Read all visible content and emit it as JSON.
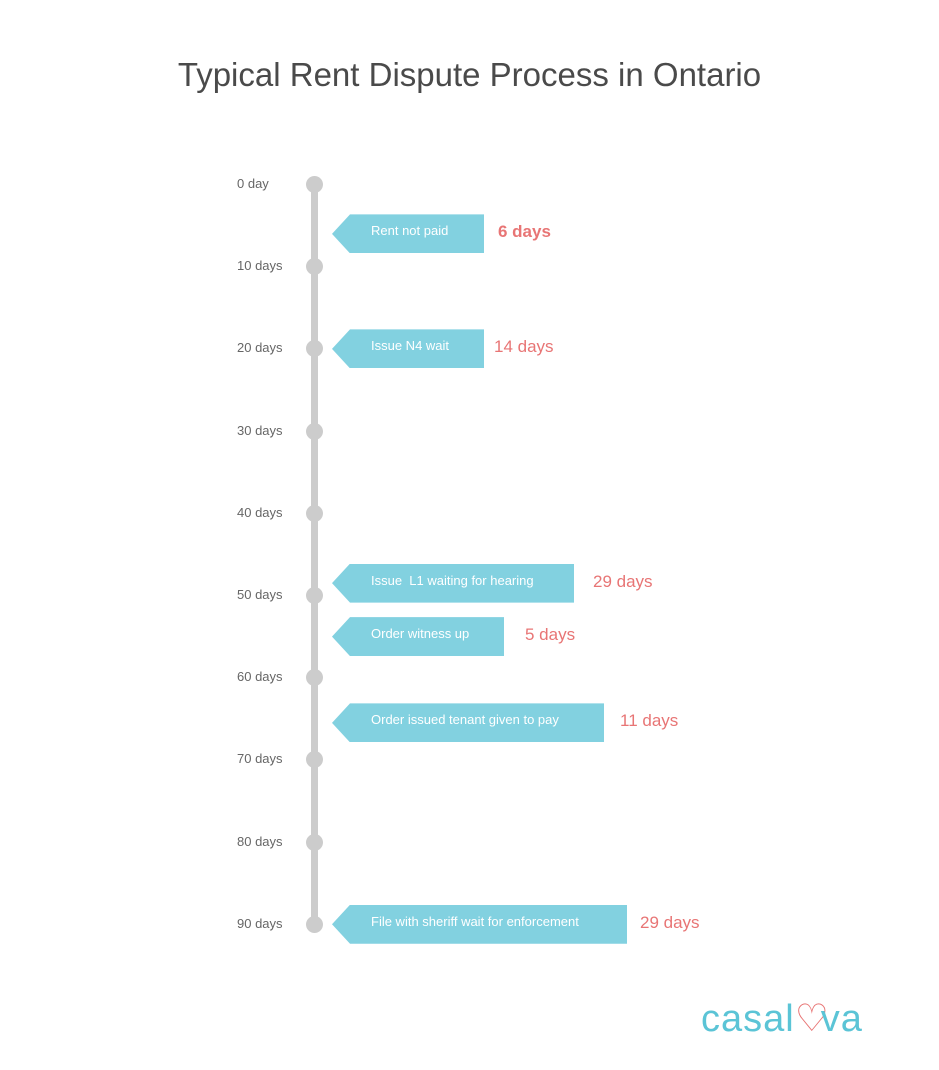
{
  "title": "Typical Rent Dispute Process in Ontario",
  "ticks": [
    "0 day",
    "10 days",
    "20 days",
    "30 days",
    "40 days",
    "50 days",
    "60 days",
    "70 days",
    "80 days",
    "90 days"
  ],
  "events": [
    {
      "label": "Rent not paid",
      "duration": "6 days",
      "start_day": 6,
      "bold": true
    },
    {
      "label": "Issue N4 wait",
      "duration": "14 days",
      "start_day": 20,
      "bold": false
    },
    {
      "label": "Issue  L1 waiting for hearing",
      "duration": "29 days",
      "start_day": 48.5,
      "bold": false
    },
    {
      "label": "Order witness up",
      "duration": "5 days",
      "start_day": 55,
      "bold": false
    },
    {
      "label": "Order issued tenant given to pay",
      "duration": "11 days",
      "start_day": 65.5,
      "bold": false
    },
    {
      "label": "File with sheriff wait for enforcement",
      "duration": "29 days",
      "start_day": 90,
      "bold": false
    }
  ],
  "logo": {
    "before": "casal",
    "heart": "♡",
    "after": "va"
  },
  "colors": {
    "tag": "#82d1e0",
    "duration": "#e87575",
    "axis": "#cccccc",
    "logo": "#5bc4d6"
  }
}
